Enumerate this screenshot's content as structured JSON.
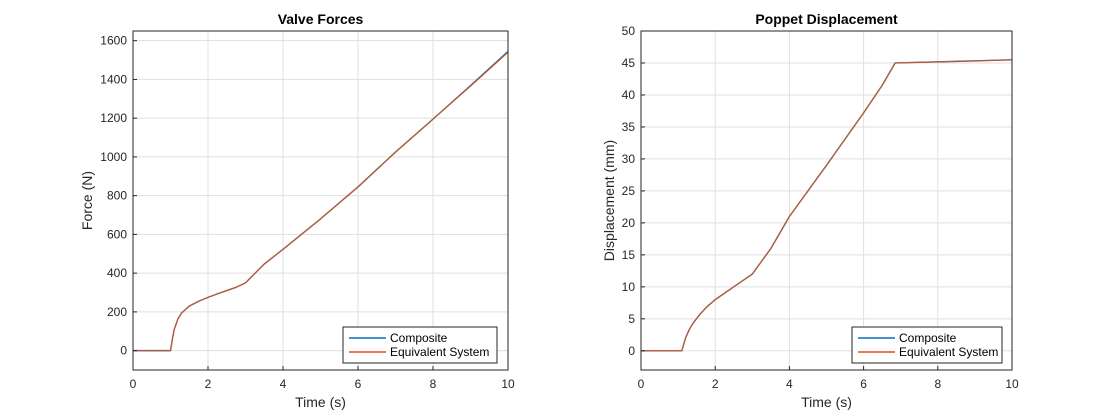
{
  "colors": {
    "composite": "#0072BD",
    "equivalent": "#D95319",
    "grid": "#dfdfdf",
    "axis": "#262626"
  },
  "chart_data": [
    {
      "type": "line",
      "title": "Valve Forces",
      "xlabel": "Time (s)",
      "ylabel": "Force (N)",
      "xlim": [
        0,
        10
      ],
      "ylim": [
        -100,
        1650
      ],
      "xticks": [
        0,
        2,
        4,
        6,
        8,
        10
      ],
      "yticks": [
        0,
        200,
        400,
        600,
        800,
        1000,
        1200,
        1400,
        1600
      ],
      "grid": true,
      "legend_position": "bottom-right",
      "series": [
        {
          "name": "Composite",
          "color": "#0072BD",
          "x": [
            0,
            1.0,
            1.05,
            1.1,
            1.2,
            1.3,
            1.5,
            1.75,
            2.0,
            2.25,
            2.5,
            2.75,
            3.0,
            3.5,
            4.0,
            5.0,
            6.0,
            7.0,
            8.0,
            9.0,
            10.0
          ],
          "y": [
            0,
            0,
            60,
            110,
            165,
            195,
            230,
            255,
            275,
            293,
            310,
            327,
            350,
            447,
            523,
            680,
            845,
            1025,
            1195,
            1368,
            1545
          ]
        },
        {
          "name": "Equivalent System",
          "color": "#D95319",
          "x": [
            0,
            1.0,
            1.05,
            1.1,
            1.2,
            1.3,
            1.5,
            1.75,
            2.0,
            2.25,
            2.5,
            2.75,
            3.0,
            3.5,
            4.0,
            5.0,
            6.0,
            7.0,
            8.0,
            9.0,
            10.0
          ],
          "y": [
            0,
            0,
            60,
            110,
            165,
            195,
            230,
            255,
            275,
            293,
            310,
            327,
            350,
            447,
            523,
            680,
            845,
            1025,
            1195,
            1365,
            1540
          ]
        }
      ]
    },
    {
      "type": "line",
      "title": "Poppet Displacement",
      "xlabel": "Time (s)",
      "ylabel": "Displacement (mm)",
      "xlim": [
        0,
        10
      ],
      "ylim": [
        -3,
        50
      ],
      "xticks": [
        0,
        2,
        4,
        6,
        8,
        10
      ],
      "yticks": [
        0,
        5,
        10,
        15,
        20,
        25,
        30,
        35,
        40,
        45,
        50
      ],
      "grid": true,
      "legend_position": "bottom-right",
      "series": [
        {
          "name": "Composite",
          "color": "#0072BD",
          "x": [
            0,
            1.1,
            1.15,
            1.2,
            1.3,
            1.4,
            1.6,
            1.8,
            2.0,
            2.25,
            2.5,
            2.75,
            3.0,
            3.5,
            4.0,
            5.0,
            6.0,
            6.5,
            6.85,
            7.5,
            8.5,
            10.0
          ],
          "y": [
            0,
            0,
            1.0,
            2.0,
            3.3,
            4.3,
            5.8,
            7.0,
            8.0,
            9.0,
            10.0,
            11.0,
            12.0,
            16.0,
            21.0,
            29.0,
            37.2,
            41.5,
            45.0,
            45.1,
            45.25,
            45.5
          ]
        },
        {
          "name": "Equivalent System",
          "color": "#D95319",
          "x": [
            0,
            1.1,
            1.15,
            1.2,
            1.3,
            1.4,
            1.6,
            1.8,
            2.0,
            2.25,
            2.5,
            2.75,
            3.0,
            3.5,
            4.0,
            5.0,
            6.0,
            6.5,
            6.85,
            7.5,
            8.5,
            10.0
          ],
          "y": [
            0,
            0,
            1.0,
            2.0,
            3.3,
            4.3,
            5.8,
            7.0,
            8.0,
            9.0,
            10.0,
            11.0,
            12.0,
            16.0,
            21.0,
            29.0,
            37.2,
            41.5,
            45.0,
            45.1,
            45.25,
            45.5
          ]
        }
      ]
    }
  ]
}
